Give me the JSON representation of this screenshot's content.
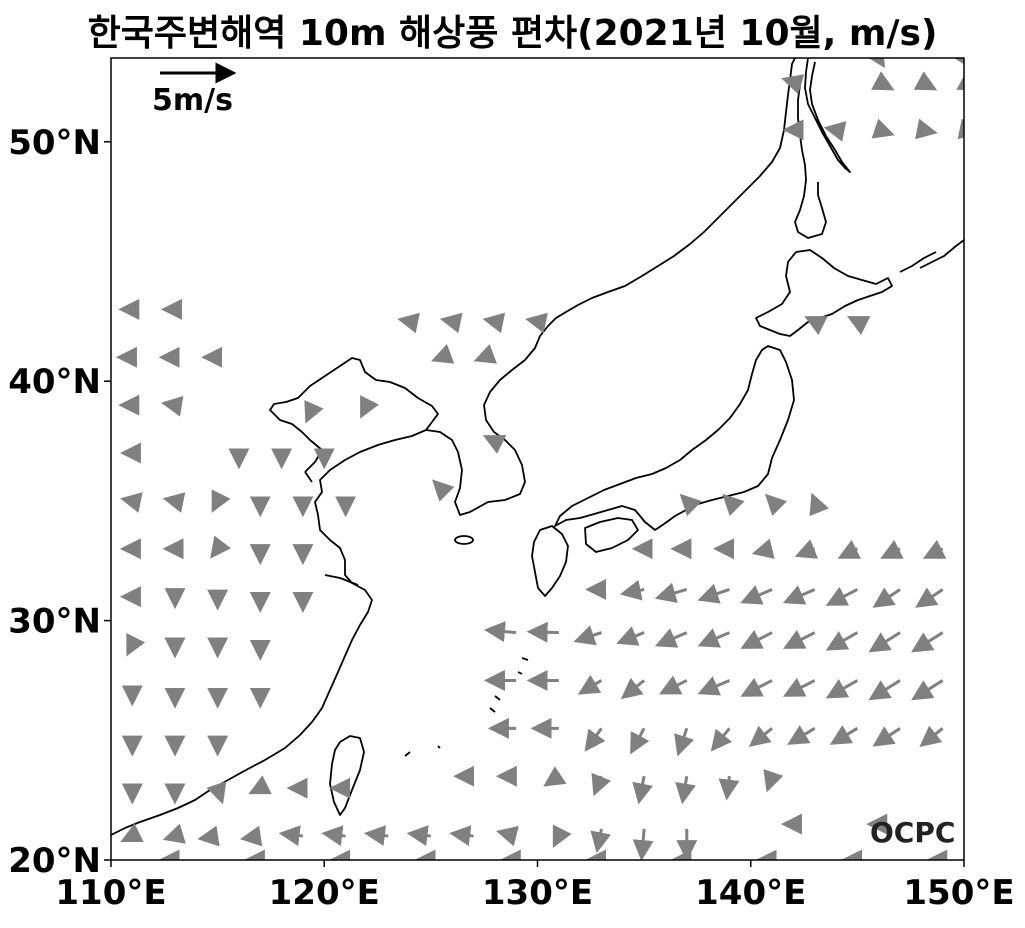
{
  "title": "한국주변해역 10m 해상풍 편차(2021년 10월, m/s)",
  "scale_arrow": {
    "label": "5m/s",
    "magnitude": 5
  },
  "logo": "OCPC",
  "map": {
    "lon_range": [
      110,
      150
    ],
    "lat_range": [
      20,
      53.5
    ],
    "x_ticks": [
      {
        "value": 110,
        "label": "110°E"
      },
      {
        "value": 120,
        "label": "120°E"
      },
      {
        "value": 130,
        "label": "130°E"
      },
      {
        "value": 140,
        "label": "140°E"
      },
      {
        "value": 150,
        "label": "150°E"
      }
    ],
    "y_ticks": [
      {
        "value": 20,
        "label": "20°N"
      },
      {
        "value": 30,
        "label": "30°N"
      },
      {
        "value": 40,
        "label": "40°N"
      },
      {
        "value": 50,
        "label": "50°N"
      }
    ],
    "coastline_color": "#000000",
    "arrow_color": "#808080",
    "grid": false
  },
  "chart_data": {
    "type": "vector-field",
    "title": "한국주변해역 10m 해상풍 편차(2021년 10월, m/s)",
    "units": "m/s",
    "vectors": [
      {
        "lon": 111,
        "lat": 43,
        "u": -1.2,
        "v": 0
      },
      {
        "lon": 113,
        "lat": 43,
        "u": -1.2,
        "v": 0
      },
      {
        "lon": 111,
        "lat": 41,
        "u": -1.5,
        "v": 0
      },
      {
        "lon": 113,
        "lat": 41,
        "u": -1.5,
        "v": 0
      },
      {
        "lon": 115,
        "lat": 41,
        "u": -1.5,
        "v": 0
      },
      {
        "lon": 111,
        "lat": 39,
        "u": -1.2,
        "v": 0
      },
      {
        "lon": 113,
        "lat": 39,
        "u": -1.2,
        "v": 0.2
      },
      {
        "lon": 111,
        "lat": 37,
        "u": -1,
        "v": 0
      },
      {
        "lon": 116,
        "lat": 37,
        "u": 0,
        "v": -1.5
      },
      {
        "lon": 118,
        "lat": 37,
        "u": 0,
        "v": -1.5
      },
      {
        "lon": 120,
        "lat": 37,
        "u": 0,
        "v": -1.5
      },
      {
        "lon": 111,
        "lat": 35,
        "u": -1,
        "v": 0.2
      },
      {
        "lon": 113,
        "lat": 35,
        "u": -1,
        "v": 0.2
      },
      {
        "lon": 115,
        "lat": 35,
        "u": -0.5,
        "v": -1
      },
      {
        "lon": 117,
        "lat": 35,
        "u": 0,
        "v": -1.5
      },
      {
        "lon": 119,
        "lat": 35,
        "u": 0,
        "v": -1.5
      },
      {
        "lon": 121,
        "lat": 35,
        "u": 0,
        "v": -1.5
      },
      {
        "lon": 119.5,
        "lat": 39,
        "u": -0.8,
        "v": -1.8
      },
      {
        "lon": 122,
        "lat": 39,
        "u": -0.6,
        "v": -1.2
      },
      {
        "lon": 124,
        "lat": 42.5,
        "u": -1,
        "v": 0.2
      },
      {
        "lon": 126,
        "lat": 42.5,
        "u": -1,
        "v": 0.2
      },
      {
        "lon": 128,
        "lat": 42.5,
        "u": -1,
        "v": 0.2
      },
      {
        "lon": 130,
        "lat": 42.5,
        "u": -1,
        "v": 0.2
      },
      {
        "lon": 125.5,
        "lat": 41,
        "u": -0.8,
        "v": -0.3
      },
      {
        "lon": 127.5,
        "lat": 41,
        "u": -0.8,
        "v": -0.3
      },
      {
        "lon": 128,
        "lat": 37.5,
        "u": -1,
        "v": 0.5
      },
      {
        "lon": 125.5,
        "lat": 35.5,
        "u": -0.8,
        "v": 0.8
      },
      {
        "lon": 111,
        "lat": 33,
        "u": -1,
        "v": 0
      },
      {
        "lon": 113,
        "lat": 33,
        "u": -1,
        "v": 0
      },
      {
        "lon": 115,
        "lat": 33,
        "u": -0.6,
        "v": -0.8
      },
      {
        "lon": 117,
        "lat": 33,
        "u": 0,
        "v": -1.5
      },
      {
        "lon": 119,
        "lat": 33,
        "u": 0,
        "v": -1.5
      },
      {
        "lon": 111,
        "lat": 31,
        "u": -1,
        "v": 0
      },
      {
        "lon": 113,
        "lat": 31,
        "u": 0,
        "v": -1
      },
      {
        "lon": 115,
        "lat": 31,
        "u": 0,
        "v": -1.2
      },
      {
        "lon": 117,
        "lat": 31,
        "u": 0,
        "v": -1.5
      },
      {
        "lon": 119,
        "lat": 31,
        "u": 0,
        "v": -1.5
      },
      {
        "lon": 111,
        "lat": 29,
        "u": -0.5,
        "v": -1
      },
      {
        "lon": 113,
        "lat": 29,
        "u": 0,
        "v": -1.2
      },
      {
        "lon": 115,
        "lat": 29,
        "u": 0,
        "v": -1.2
      },
      {
        "lon": 117,
        "lat": 29,
        "u": 0,
        "v": -1.5
      },
      {
        "lon": 111,
        "lat": 27,
        "u": 0,
        "v": -1.2
      },
      {
        "lon": 113,
        "lat": 27,
        "u": 0,
        "v": -1.5
      },
      {
        "lon": 115,
        "lat": 27,
        "u": 0,
        "v": -1.5
      },
      {
        "lon": 117,
        "lat": 27,
        "u": 0,
        "v": -1.5
      },
      {
        "lon": 111,
        "lat": 25,
        "u": 0,
        "v": -1.5
      },
      {
        "lon": 113,
        "lat": 25,
        "u": 0,
        "v": -1.5
      },
      {
        "lon": 115,
        "lat": 25,
        "u": 0,
        "v": -1.5
      },
      {
        "lon": 111,
        "lat": 23,
        "u": 0,
        "v": -1.5
      },
      {
        "lon": 113,
        "lat": 23,
        "u": 0,
        "v": -1.5
      },
      {
        "lon": 115,
        "lat": 23,
        "u": 0.5,
        "v": -1.5
      },
      {
        "lon": 117,
        "lat": 23,
        "u": -1,
        "v": -0.5
      },
      {
        "lon": 119,
        "lat": 23,
        "u": -1.5,
        "v": 0
      },
      {
        "lon": 121,
        "lat": 23,
        "u": -1.5,
        "v": 0
      },
      {
        "lon": 111,
        "lat": 21,
        "u": -1,
        "v": -0.5
      },
      {
        "lon": 113,
        "lat": 21,
        "u": -1,
        "v": -0.3
      },
      {
        "lon": 115,
        "lat": 21,
        "u": -2,
        "v": -0.3
      },
      {
        "lon": 117,
        "lat": 21,
        "u": -2,
        "v": -0.3
      },
      {
        "lon": 119,
        "lat": 21,
        "u": -2.5,
        "v": 0.3
      },
      {
        "lon": 121,
        "lat": 21,
        "u": -2.5,
        "v": 0.3
      },
      {
        "lon": 123,
        "lat": 21,
        "u": -2.5,
        "v": 0.3
      },
      {
        "lon": 125,
        "lat": 21,
        "u": -2.5,
        "v": 0.3
      },
      {
        "lon": 127,
        "lat": 21,
        "u": -2.5,
        "v": 0.3
      },
      {
        "lon": 129,
        "lat": 21,
        "u": -2,
        "v": 0.5
      },
      {
        "lon": 131,
        "lat": 21,
        "u": -0.5,
        "v": -1
      },
      {
        "lon": 113,
        "lat": 20,
        "u": -1.5,
        "v": 0
      },
      {
        "lon": 117,
        "lat": 20,
        "u": -1.5,
        "v": 0
      },
      {
        "lon": 121,
        "lat": 20,
        "u": -1.5,
        "v": 0
      },
      {
        "lon": 125,
        "lat": 20,
        "u": -1.5,
        "v": 0
      },
      {
        "lon": 129,
        "lat": 20,
        "u": -1.5,
        "v": 0
      },
      {
        "lon": 133,
        "lat": 20,
        "u": -1.5,
        "v": 0
      },
      {
        "lon": 137,
        "lat": 20,
        "u": -1.5,
        "v": 0
      },
      {
        "lon": 141,
        "lat": 20,
        "u": -1.5,
        "v": 0
      },
      {
        "lon": 145,
        "lat": 20,
        "u": -1.5,
        "v": 0
      },
      {
        "lon": 149,
        "lat": 20,
        "u": -1.5,
        "v": 0
      },
      {
        "lon": 129,
        "lat": 29.5,
        "u": -3.5,
        "v": 0.3
      },
      {
        "lon": 131,
        "lat": 29.5,
        "u": -3.5,
        "v": 0.1
      },
      {
        "lon": 129,
        "lat": 27.5,
        "u": -3.5,
        "v": 0
      },
      {
        "lon": 131,
        "lat": 27.5,
        "u": -3.5,
        "v": 0
      },
      {
        "lon": 129,
        "lat": 25.5,
        "u": -3,
        "v": 0
      },
      {
        "lon": 131,
        "lat": 25.5,
        "u": -3,
        "v": 0
      },
      {
        "lon": 127,
        "lat": 23.5,
        "u": -2,
        "v": 0
      },
      {
        "lon": 129,
        "lat": 23.5,
        "u": -2,
        "v": 0
      },
      {
        "lon": 131,
        "lat": 23.5,
        "u": -1.5,
        "v": -1
      },
      {
        "lon": 133,
        "lat": 31.3,
        "u": -1.5,
        "v": 0
      },
      {
        "lon": 135,
        "lat": 31.3,
        "u": -2.5,
        "v": -0.5
      },
      {
        "lon": 137,
        "lat": 31.3,
        "u": -3.5,
        "v": -1
      },
      {
        "lon": 139,
        "lat": 31.3,
        "u": -3.5,
        "v": -1.2
      },
      {
        "lon": 141,
        "lat": 31.3,
        "u": -3.5,
        "v": -1.5
      },
      {
        "lon": 143,
        "lat": 31.3,
        "u": -3.5,
        "v": -1.5
      },
      {
        "lon": 145,
        "lat": 31.3,
        "u": -3.5,
        "v": -1.8
      },
      {
        "lon": 147,
        "lat": 31.3,
        "u": -3,
        "v": -2
      },
      {
        "lon": 149,
        "lat": 31.3,
        "u": -3,
        "v": -2
      },
      {
        "lon": 135,
        "lat": 33,
        "u": -1,
        "v": 0
      },
      {
        "lon": 137,
        "lat": 33,
        "u": -1.5,
        "v": 0
      },
      {
        "lon": 139,
        "lat": 33,
        "u": -1.5,
        "v": 0
      },
      {
        "lon": 141,
        "lat": 33,
        "u": -2,
        "v": -0.5
      },
      {
        "lon": 143,
        "lat": 33,
        "u": -2,
        "v": -0.8
      },
      {
        "lon": 145,
        "lat": 33,
        "u": -2,
        "v": -1
      },
      {
        "lon": 147,
        "lat": 33,
        "u": -2,
        "v": -1
      },
      {
        "lon": 149,
        "lat": 33,
        "u": -2,
        "v": -1
      },
      {
        "lon": 133,
        "lat": 29.5,
        "u": -3,
        "v": -1
      },
      {
        "lon": 135,
        "lat": 29.5,
        "u": -3,
        "v": -1.2
      },
      {
        "lon": 137,
        "lat": 29.5,
        "u": -3.5,
        "v": -1.5
      },
      {
        "lon": 139,
        "lat": 29.5,
        "u": -3.5,
        "v": -1.5
      },
      {
        "lon": 141,
        "lat": 29.5,
        "u": -3.5,
        "v": -1.8
      },
      {
        "lon": 143,
        "lat": 29.5,
        "u": -3.5,
        "v": -1.8
      },
      {
        "lon": 145,
        "lat": 29.5,
        "u": -3.5,
        "v": -2
      },
      {
        "lon": 147,
        "lat": 29.5,
        "u": -3.5,
        "v": -2.2
      },
      {
        "lon": 149,
        "lat": 29.5,
        "u": -3.5,
        "v": -2.2
      },
      {
        "lon": 133,
        "lat": 27.5,
        "u": -2.5,
        "v": -1.5
      },
      {
        "lon": 135,
        "lat": 27.5,
        "u": -2.5,
        "v": -2
      },
      {
        "lon": 137,
        "lat": 27.5,
        "u": -3,
        "v": -1.5
      },
      {
        "lon": 139,
        "lat": 27.5,
        "u": -3.5,
        "v": -1.5
      },
      {
        "lon": 141,
        "lat": 27.5,
        "u": -3.5,
        "v": -1.8
      },
      {
        "lon": 143,
        "lat": 27.5,
        "u": -3.5,
        "v": -1.8
      },
      {
        "lon": 145,
        "lat": 27.5,
        "u": -3.5,
        "v": -2
      },
      {
        "lon": 147,
        "lat": 27.5,
        "u": -3.5,
        "v": -2.2
      },
      {
        "lon": 149,
        "lat": 27.5,
        "u": -3.5,
        "v": -2.2
      },
      {
        "lon": 133,
        "lat": 25.5,
        "u": -1.8,
        "v": -2.5
      },
      {
        "lon": 135,
        "lat": 25.5,
        "u": -1.5,
        "v": -2.8
      },
      {
        "lon": 137,
        "lat": 25.5,
        "u": -1,
        "v": -3
      },
      {
        "lon": 139,
        "lat": 25.5,
        "u": -2,
        "v": -2.5
      },
      {
        "lon": 141,
        "lat": 25.5,
        "u": -2.5,
        "v": -2
      },
      {
        "lon": 143,
        "lat": 25.5,
        "u": -3,
        "v": -1.8
      },
      {
        "lon": 145,
        "lat": 25.5,
        "u": -3,
        "v": -1.8
      },
      {
        "lon": 147,
        "lat": 25.5,
        "u": -3,
        "v": -2
      },
      {
        "lon": 149,
        "lat": 25.5,
        "u": -2.5,
        "v": -2
      },
      {
        "lon": 133,
        "lat": 23.5,
        "u": -0.8,
        "v": -2
      },
      {
        "lon": 135,
        "lat": 23.5,
        "u": -0.6,
        "v": -3
      },
      {
        "lon": 137,
        "lat": 23.5,
        "u": -0.5,
        "v": -3
      },
      {
        "lon": 139,
        "lat": 23.5,
        "u": -0.3,
        "v": -2.5
      },
      {
        "lon": 141,
        "lat": 23.5,
        "u": -0.5,
        "v": -1.5
      },
      {
        "lon": 133,
        "lat": 21.3,
        "u": -0.5,
        "v": -2.5
      },
      {
        "lon": 135,
        "lat": 21.3,
        "u": -0.3,
        "v": -3.5
      },
      {
        "lon": 137,
        "lat": 21.3,
        "u": 0,
        "v": -3.5
      },
      {
        "lon": 142,
        "lat": 21.5,
        "u": -1,
        "v": 0
      },
      {
        "lon": 146,
        "lat": 21.5,
        "u": -1,
        "v": 0
      },
      {
        "lon": 137,
        "lat": 35,
        "u": -0.5,
        "v": 0.5
      },
      {
        "lon": 139,
        "lat": 35,
        "u": -0.5,
        "v": 0.5
      },
      {
        "lon": 141,
        "lat": 35,
        "u": -0.5,
        "v": 0.5
      },
      {
        "lon": 143,
        "lat": 35,
        "u": -0.2,
        "v": 0.5
      },
      {
        "lon": 142,
        "lat": 52.5,
        "u": -1,
        "v": 0.3
      },
      {
        "lon": 146,
        "lat": 52.5,
        "u": 1.5,
        "v": -0.8
      },
      {
        "lon": 148,
        "lat": 52.5,
        "u": 1.5,
        "v": -0.8
      },
      {
        "lon": 150,
        "lat": 52.5,
        "u": 1.5,
        "v": -0.8
      },
      {
        "lon": 142,
        "lat": 50.5,
        "u": -0.8,
        "v": 0
      },
      {
        "lon": 144,
        "lat": 50.5,
        "u": -1,
        "v": 0.2
      },
      {
        "lon": 146,
        "lat": 50.5,
        "u": 1.5,
        "v": -0.5
      },
      {
        "lon": 148,
        "lat": 50.5,
        "u": 1.5,
        "v": -0.3
      },
      {
        "lon": 150,
        "lat": 50.5,
        "u": 1.5,
        "v": -0.3
      },
      {
        "lon": 146,
        "lat": 53.5,
        "u": 0.5,
        "v": -0.8
      },
      {
        "lon": 150,
        "lat": 53.5,
        "u": 0.5,
        "v": -0.8
      },
      {
        "lon": 143,
        "lat": 42.5,
        "u": -0.8,
        "v": 0.4
      },
      {
        "lon": 145,
        "lat": 42.5,
        "u": -0.8,
        "v": 0.4
      }
    ]
  }
}
